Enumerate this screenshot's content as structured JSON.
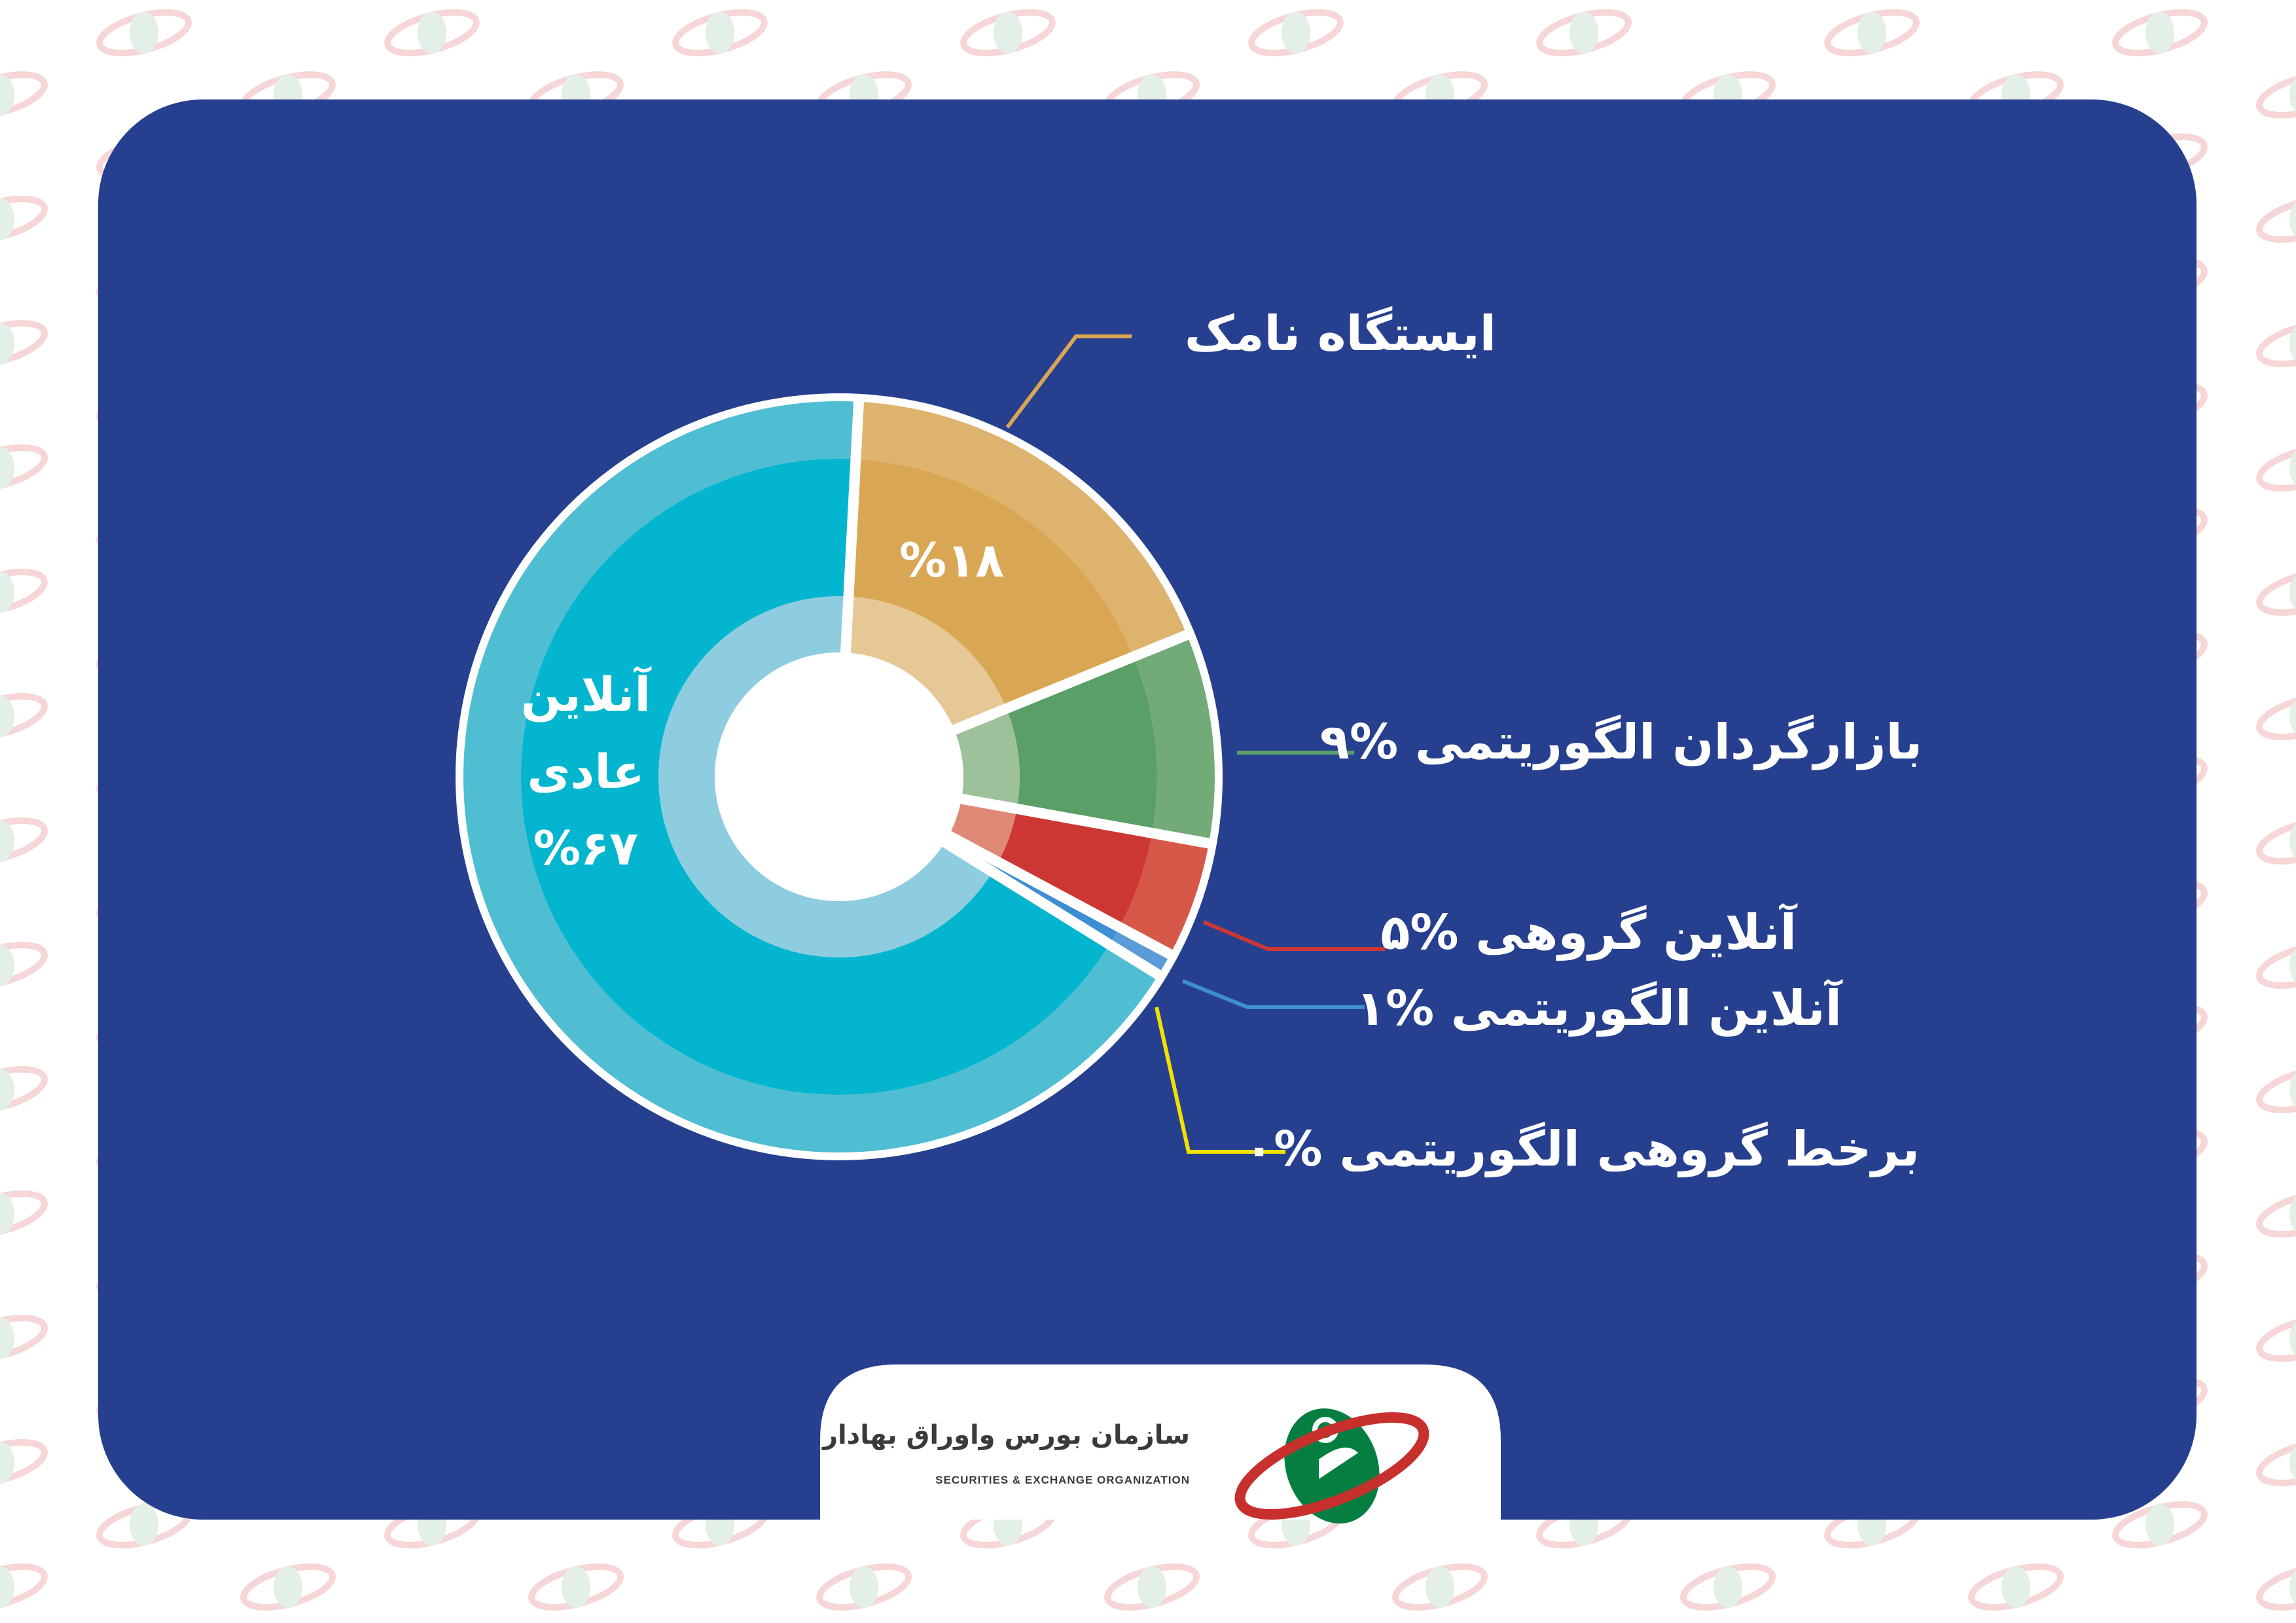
{
  "colors": {
    "card_background": "#273f8f",
    "page_background": "#ffffff",
    "separator": "#ffffff"
  },
  "chart_data": {
    "type": "pie",
    "variant": "donut",
    "start_angle_deg": 3,
    "direction": "clockwise",
    "slices": [
      {
        "label": "ایستگاه نامک",
        "value": 18,
        "value_label": "%۱۸",
        "color": "#d9a653",
        "outer_color": "#deb36d",
        "inner_color": "#e6c796"
      },
      {
        "label": "بازارگردان الگوریتمی",
        "value": 9,
        "value_label": "%۹",
        "color": "#5a9f68",
        "outer_color": "#73ab78",
        "inner_color": "#9dc19b"
      },
      {
        "label": "آنلاین گروهی",
        "value": 5,
        "value_label": "%۵",
        "color": "#cc3733",
        "outer_color": "#d65848",
        "inner_color": "#e08876"
      },
      {
        "label": "آنلاین الگوریتمی",
        "value": 1,
        "value_label": "%۱",
        "color": "#3d8ed3",
        "outer_color": "#5b9bd8",
        "inner_color": "#7fb1e0"
      },
      {
        "label": "برخط گروهی الگوریتمی",
        "value": 0,
        "value_label": "%۰",
        "color": "#f2e000",
        "outer_color": "#f2e000",
        "inner_color": "#f2e000"
      },
      {
        "label": "آنلاین عادی",
        "value": 67,
        "value_label": "%۶۷",
        "color": "#03b5cf",
        "outer_color": "#4fbdd2",
        "inner_color": "#8ecddf"
      }
    ],
    "legend": "callouts-right"
  },
  "labels": {
    "namak": "ایستگاه نامک",
    "market_maker": "بازارگردان الگوریتمی %۹",
    "online_group": "آنلاین گروهی %۵",
    "online_algo": "آنلاین الگوریتمی %۱",
    "online_group_algo": "برخط گروهی الگوریتمی %۰",
    "namak_value": "%۱۸",
    "online_regular_line1": "آنلاین",
    "online_regular_line2": "عادی",
    "online_regular_value": "%۶۷"
  },
  "logo": {
    "name_fa": "سازمان بورس واوراق بهادار",
    "name_en": "SECURITIES & EXCHANGE  ORGANIZATION"
  }
}
